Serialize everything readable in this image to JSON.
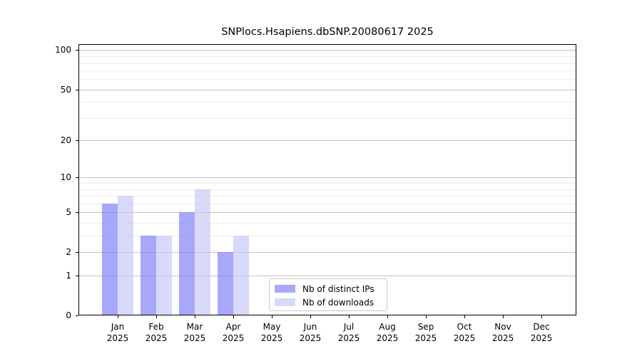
{
  "chart_data": {
    "type": "bar",
    "title": "SNPlocs.Hsapiens.dbSNP.20080617 2025",
    "categories": [
      "Jan",
      "Feb",
      "Mar",
      "Apr",
      "May",
      "Jun",
      "Jul",
      "Aug",
      "Sep",
      "Oct",
      "Nov",
      "Dec"
    ],
    "year_label": "2025",
    "series": [
      {
        "name": "Nb of distinct IPs",
        "color": "#a8a8f8",
        "fill": "rgba(121,121,247,0.65)",
        "values": [
          6,
          3,
          5,
          2,
          0,
          0,
          0,
          0,
          0,
          0,
          0,
          0
        ]
      },
      {
        "name": "Nb of downloads",
        "color": "#d9d9f8",
        "fill": "rgba(197,197,247,0.65)",
        "values": [
          7,
          3,
          8,
          3,
          0,
          0,
          0,
          0,
          0,
          0,
          0,
          0
        ]
      }
    ],
    "yscale": "log1p",
    "yticks": [
      0,
      1,
      2,
      5,
      10,
      20,
      50,
      100
    ],
    "ytick_labels": [
      "0",
      "1",
      "2",
      "5",
      "10",
      "20",
      "50",
      "100"
    ],
    "minor_gridlines": [
      3,
      4,
      6,
      7,
      8,
      9,
      30,
      40,
      60,
      70,
      80,
      90
    ],
    "ylim": [
      0,
      111
    ],
    "grid": true,
    "grid_major_color": "#c4c4c4",
    "grid_minor_color": "#ececec",
    "axis_color": "#000000",
    "legend_position": "lower center inside",
    "xlabel": "",
    "ylabel": ""
  }
}
